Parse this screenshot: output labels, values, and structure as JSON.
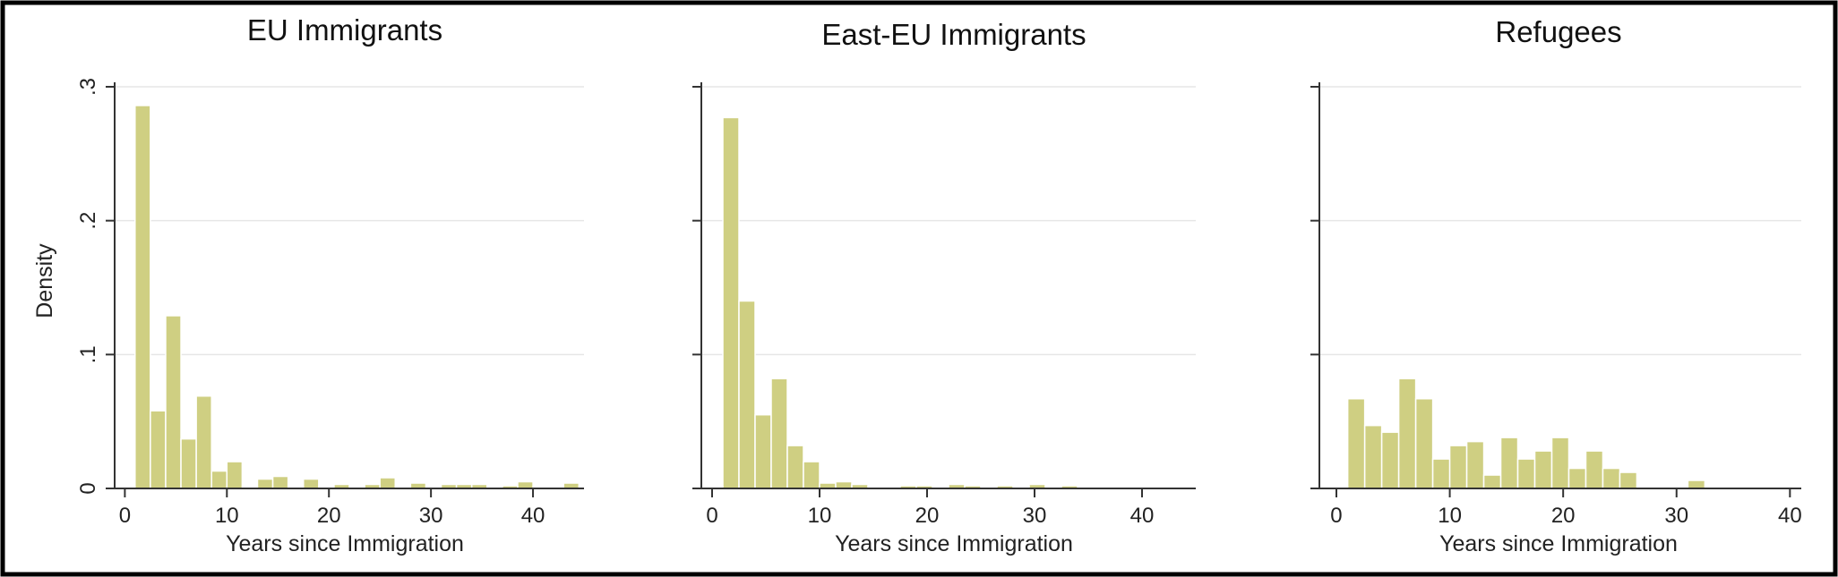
{
  "chart_data": [
    {
      "type": "bar",
      "title": "EU Immigrants",
      "xlabel": "Years since Immigration",
      "ylabel": "Density",
      "xlim": [
        -1,
        45
      ],
      "ylim": [
        0,
        0.3
      ],
      "xticks": [
        0,
        10,
        20,
        30,
        40
      ],
      "xtick_labels": [
        "0",
        "10",
        "20",
        "30",
        "40"
      ],
      "yticks": [
        0,
        0.1,
        0.2,
        0.3
      ],
      "ytick_labels": [
        "0",
        ".1",
        ".2",
        ".3"
      ],
      "show_yticklabels": true,
      "bin_width": 1.5,
      "bin_starts": [
        1,
        2.5,
        4,
        5.5,
        7,
        8.5,
        10,
        11.5,
        13,
        14.5,
        16,
        17.5,
        19,
        20.5,
        22,
        23.5,
        25,
        26.5,
        28,
        29.5,
        31,
        32.5,
        34,
        35.5,
        37,
        38.5,
        40,
        41.5,
        43
      ],
      "values": [
        0.286,
        0.058,
        0.129,
        0.037,
        0.069,
        0.013,
        0.02,
        0,
        0.007,
        0.009,
        0,
        0.007,
        0,
        0.003,
        0,
        0.003,
        0.008,
        0,
        0.004,
        0,
        0.003,
        0.003,
        0.003,
        0,
        0.002,
        0.005,
        0,
        0,
        0.004
      ],
      "grid": true,
      "bar_color": "#cfcf82"
    },
    {
      "type": "bar",
      "title": "East-EU Immigrants",
      "xlabel": "Years since Immigration",
      "ylabel": "",
      "xlim": [
        -1,
        45
      ],
      "ylim": [
        0,
        0.3
      ],
      "xticks": [
        0,
        10,
        20,
        30,
        40
      ],
      "xtick_labels": [
        "0",
        "10",
        "20",
        "30",
        "40"
      ],
      "yticks": [
        0,
        0.1,
        0.2,
        0.3
      ],
      "ytick_labels": [
        "",
        "",
        "",
        ""
      ],
      "show_yticklabels": false,
      "bin_width": 1.5,
      "bin_starts": [
        1,
        2.5,
        4,
        5.5,
        7,
        8.5,
        10,
        11.5,
        13,
        14.5,
        16,
        17.5,
        19,
        20.5,
        22,
        23.5,
        25,
        26.5,
        28,
        29.5,
        31,
        32.5,
        34,
        35.5,
        37,
        38.5,
        40,
        41.5,
        43
      ],
      "values": [
        0.277,
        0.14,
        0.055,
        0.082,
        0.032,
        0.02,
        0.004,
        0.005,
        0.003,
        0,
        0,
        0.002,
        0.002,
        0,
        0.003,
        0.002,
        0,
        0.002,
        0,
        0.003,
        0,
        0.002,
        0,
        0.001,
        0.001,
        0,
        0.001,
        0.001,
        0
      ],
      "grid": true,
      "bar_color": "#cfcf82"
    },
    {
      "type": "bar",
      "title": "Refugees",
      "xlabel": "Years since Immigration",
      "ylabel": "",
      "xlim": [
        -1.5,
        41
      ],
      "ylim": [
        0,
        0.3
      ],
      "xticks": [
        0,
        10,
        20,
        30,
        40
      ],
      "xtick_labels": [
        "0",
        "10",
        "20",
        "30",
        "40"
      ],
      "yticks": [
        0,
        0.1,
        0.2,
        0.3
      ],
      "ytick_labels": [
        "",
        "",
        "",
        ""
      ],
      "show_yticklabels": false,
      "bin_width": 1.5,
      "bin_starts": [
        1,
        2.5,
        4,
        5.5,
        7,
        8.5,
        10,
        11.5,
        13,
        14.5,
        16,
        17.5,
        19,
        20.5,
        22,
        23.5,
        25,
        26.5,
        28,
        29.5,
        31
      ],
      "values": [
        0.067,
        0.047,
        0.042,
        0.082,
        0.067,
        0.022,
        0.032,
        0.035,
        0.01,
        0.038,
        0.022,
        0.028,
        0.038,
        0.015,
        0.028,
        0.015,
        0.012,
        0,
        0,
        0,
        0.006
      ],
      "grid": true,
      "bar_color": "#cfcf82"
    }
  ]
}
